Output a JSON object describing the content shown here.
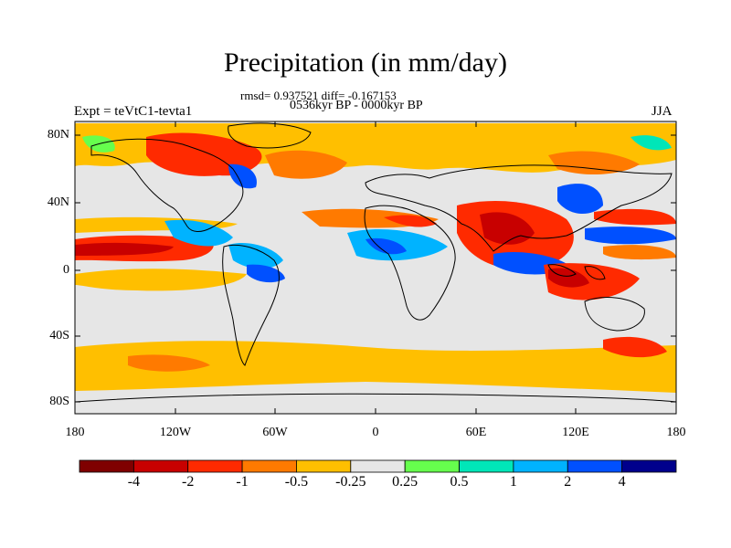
{
  "title": "Precipitation (in mm/day)",
  "stats": "rmsd= 0.937521  diff= -0.167153",
  "period": "0536kyr BP - 0000kyr BP",
  "experiment": "Expt = teVtC1-tevta1",
  "season": "JJA",
  "axes": {
    "y_ticks": [
      "80N",
      "40N",
      "0",
      "40S",
      "80S"
    ],
    "x_ticks": [
      "180",
      "120W",
      "60W",
      "0",
      "60E",
      "120E",
      "180"
    ]
  },
  "colorbar": {
    "labels": [
      "-4",
      "-2",
      "-1",
      "-0.5",
      "-0.25",
      "0.25",
      "0.5",
      "1",
      "2",
      "4"
    ],
    "colors": [
      "#7f0000",
      "#c80000",
      "#ff2a00",
      "#ff7a00",
      "#ffbf00",
      "#e6e6e6",
      "#66ff4d",
      "#00e6b8",
      "#00b3ff",
      "#0050ff",
      "#00008c"
    ]
  },
  "map_colors": {
    "land_line": "#000000",
    "neutral": "#e6e6e6"
  }
}
